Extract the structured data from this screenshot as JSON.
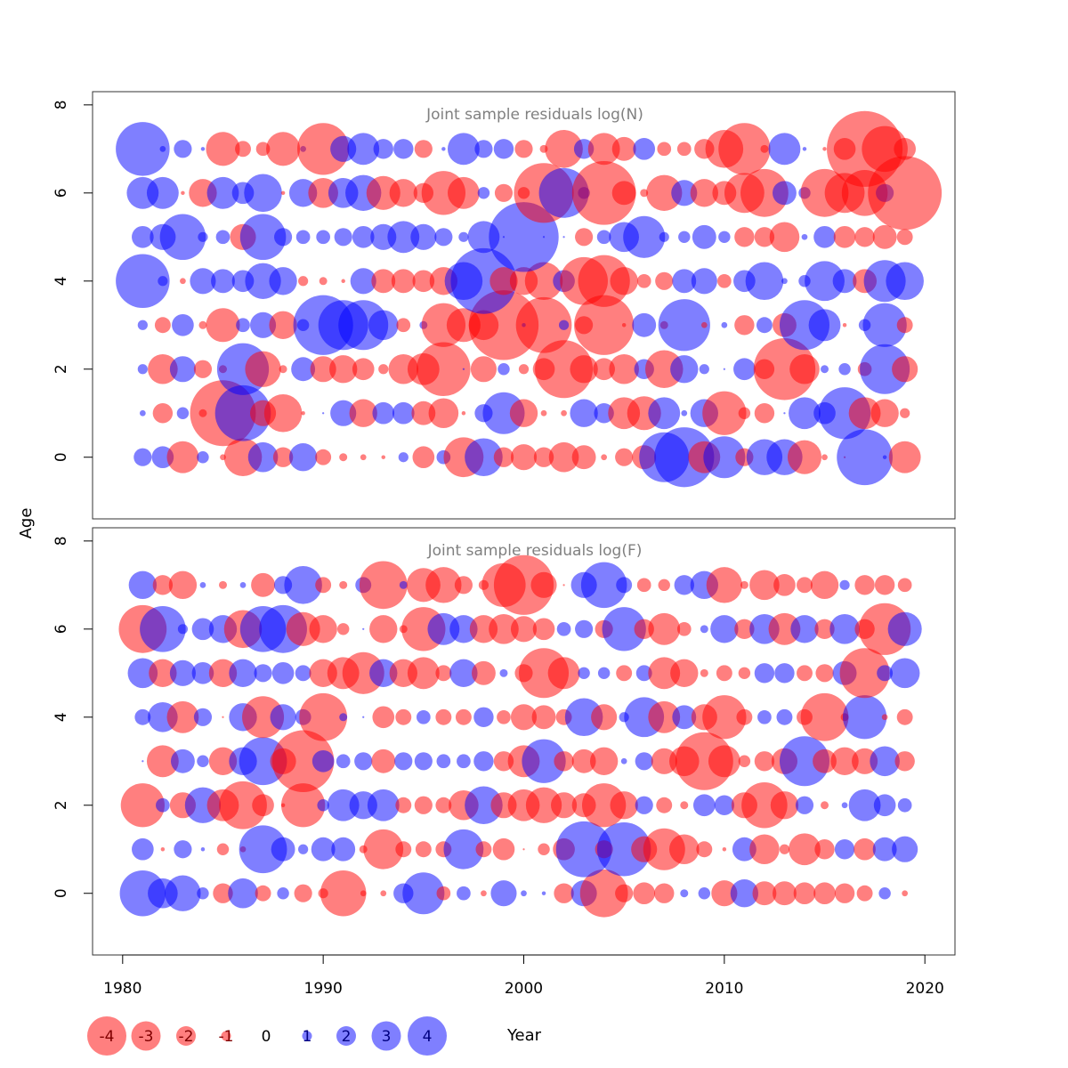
{
  "chart_data": {
    "type": "scatter",
    "subtype": "bubble-residuals",
    "xlabel": "Year",
    "ylabel": "Age",
    "xlim": [
      1978.5,
      2021.5
    ],
    "ylim": [
      -1.4,
      8.3
    ],
    "xticks": [
      1980,
      1990,
      2000,
      2010,
      2020
    ],
    "yticks": [
      0,
      2,
      4,
      6,
      8
    ],
    "colors": {
      "positive": "#0000ff",
      "negative": "#ff0000",
      "opacity": 0.5
    },
    "years": [
      1981,
      1982,
      1983,
      1984,
      1985,
      1986,
      1987,
      1988,
      1989,
      1990,
      1991,
      1992,
      1993,
      1994,
      1995,
      1996,
      1997,
      1998,
      1999,
      2000,
      2001,
      2002,
      2003,
      2004,
      2005,
      2006,
      2007,
      2008,
      2009,
      2010,
      2011,
      2012,
      2013,
      2014,
      2015,
      2016,
      2017,
      2018,
      2019
    ],
    "ages": [
      0,
      1,
      2,
      3,
      4,
      5,
      6,
      7
    ],
    "panels": [
      {
        "title": "Joint sample residuals log(N)",
        "residuals": [
          [
            0.9,
            1.1,
            -1.6,
            0.6,
            -0.3,
            -1.9,
            1.5,
            -1.0,
            1.4,
            -0.8,
            -0.4,
            -0.3,
            -0.2,
            0.5,
            -1.1,
            0.7,
            -2.0,
            1.9,
            -1.0,
            -1.3,
            -1.0,
            -1.5,
            -1.2,
            -0.3,
            -0.9,
            -1.2,
            2.5,
            3.0,
            -1.6,
            2.1,
            -0.9,
            1.8,
            1.8,
            -1.7,
            -0.3,
            -0.1,
            2.8,
            0.2,
            -1.6
          ],
          [
            0.3,
            -1.0,
            0.6,
            -0.4,
            -3.3,
            2.8,
            -1.3,
            -1.9,
            -0.2,
            0.1,
            1.3,
            -1.4,
            1.1,
            1.1,
            -1.2,
            -1.5,
            -0.2,
            0.9,
            2.1,
            -1.4,
            -0.3,
            -0.3,
            1.4,
            1.0,
            -1.6,
            -1.7,
            1.6,
            0.3,
            1.4,
            -2.2,
            -0.6,
            -1.0,
            0.1,
            1.6,
            1.1,
            2.6,
            -1.6,
            -1.4,
            -0.5
          ],
          [
            0.5,
            -1.5,
            1.3,
            -0.9,
            -0.4,
            2.6,
            -1.8,
            -0.4,
            1.2,
            -1.3,
            -1.4,
            -1.1,
            -0.5,
            -1.5,
            -1.6,
            -2.7,
            0.1,
            -1.3,
            0.6,
            -0.5,
            -1.1,
            -2.9,
            -1.4,
            -1.1,
            -1.5,
            1.0,
            -1.9,
            1.4,
            0.5,
            0.1,
            1.1,
            -1.0,
            -3.1,
            -1.5,
            0.4,
            0.6,
            -0.7,
            2.5,
            -1.3
          ],
          [
            0.5,
            -0.8,
            1.1,
            -0.4,
            -1.7,
            0.7,
            1.3,
            -1.4,
            0.6,
            3.0,
            2.5,
            2.5,
            1.5,
            -0.7,
            0.4,
            -2.2,
            -1.7,
            -1.5,
            -3.5,
            0.2,
            -2.8,
            0.5,
            -0.9,
            -3.0,
            -0.2,
            1.2,
            -0.4,
            2.6,
            -0.3,
            0.3,
            -1.0,
            0.8,
            -1.2,
            2.5,
            1.6,
            -0.2,
            0.6,
            2.2,
            -0.8
          ],
          [
            2.7,
            0.5,
            -0.3,
            1.3,
            1.2,
            1.1,
            1.8,
            1.4,
            -0.5,
            -0.4,
            -0.2,
            1.3,
            -1.2,
            -1.2,
            -1.1,
            -1.4,
            1.9,
            3.3,
            -1.4,
            -1.4,
            -1.9,
            1.1,
            -2.4,
            -2.6,
            -1.4,
            -0.7,
            -0.9,
            1.2,
            1.3,
            -0.7,
            1.1,
            1.9,
            0.3,
            0.6,
            2.0,
            1.2,
            -1.2,
            2.1,
            1.9
          ],
          [
            1.1,
            1.3,
            2.3,
            0.5,
            0.7,
            -1.3,
            2.3,
            0.9,
            0.7,
            0.7,
            0.9,
            1.1,
            1.3,
            1.6,
            1.3,
            0.9,
            0.5,
            1.6,
            0.1,
            3.5,
            0.1,
            0.1,
            -0.9,
            0.7,
            1.5,
            2.1,
            0.5,
            0.6,
            1.2,
            0.6,
            -1.0,
            -1.0,
            -1.5,
            0.3,
            1.1,
            -1.1,
            -1.0,
            -1.2,
            -0.8
          ],
          [
            1.6,
            1.6,
            -0.2,
            -1.4,
            1.6,
            1.1,
            1.9,
            -0.2,
            1.4,
            -1.5,
            1.5,
            1.8,
            -1.7,
            -1.4,
            -1.0,
            -2.2,
            -1.6,
            0.6,
            -0.9,
            -0.6,
            -3.0,
            2.5,
            0.6,
            -3.2,
            -1.2,
            -0.4,
            -1.8,
            1.3,
            -1.4,
            -1.2,
            -2.0,
            -2.4,
            1.2,
            0.6,
            -2.4,
            -2.0,
            -2.3,
            0.9,
            -3.7
          ],
          [
            2.7,
            0.3,
            0.9,
            0.2,
            -1.7,
            -0.8,
            -0.7,
            -1.7,
            0.3,
            -2.6,
            1.3,
            1.6,
            1.0,
            1.0,
            -0.9,
            0.2,
            1.6,
            0.9,
            1.0,
            -0.9,
            -0.4,
            -1.9,
            1.0,
            -1.6,
            -1.2,
            1.1,
            -0.7,
            -0.7,
            -1.0,
            -1.9,
            -2.6,
            -0.4,
            1.6,
            0.2,
            -0.2,
            -1.1,
            -3.8,
            -2.3,
            -1.1
          ]
        ]
      },
      {
        "title": "Joint sample residuals log(F)",
        "residuals": [
          [
            2.3,
            1.5,
            1.8,
            0.6,
            -1.0,
            1.5,
            -0.8,
            0.6,
            -0.9,
            -0.5,
            -2.3,
            -0.3,
            -0.3,
            1.0,
            2.1,
            -0.7,
            0.7,
            -0.3,
            1.3,
            0.3,
            0.2,
            -1.0,
            1.3,
            -2.4,
            -0.9,
            -1.1,
            -1.0,
            0.4,
            0.6,
            -1.3,
            1.4,
            -1.2,
            -1.2,
            -1.1,
            -1.1,
            -1.0,
            -0.8,
            0.6,
            -0.3
          ],
          [
            1.1,
            -0.2,
            0.9,
            0.2,
            -0.6,
            -0.3,
            2.4,
            1.2,
            0.5,
            1.2,
            1.2,
            -0.4,
            -2.0,
            -0.8,
            -0.8,
            -0.8,
            2.0,
            -0.8,
            -1.1,
            -0.1,
            -0.6,
            -1.1,
            2.8,
            -0.9,
            2.7,
            -1.3,
            -2.1,
            -1.5,
            -0.8,
            -0.2,
            1.2,
            -1.5,
            -0.5,
            -1.6,
            -1.0,
            1.0,
            -1.1,
            1.2,
            1.3
          ],
          [
            -2.2,
            0.7,
            -1.3,
            1.8,
            -1.6,
            -2.4,
            -1.1,
            -0.2,
            -2.2,
            0.6,
            1.6,
            1.4,
            1.6,
            -0.8,
            -0.9,
            -0.8,
            -1.5,
            1.9,
            -1.3,
            -1.6,
            -1.8,
            -1.3,
            -1.2,
            -2.2,
            -1.4,
            0.9,
            -0.8,
            -0.4,
            1.1,
            1.0,
            -1.3,
            -2.3,
            -1.4,
            0.9,
            -0.4,
            0.3,
            1.6,
            1.1,
            0.7
          ],
          [
            0.1,
            -1.6,
            1.2,
            0.6,
            -1.4,
            1.4,
            2.4,
            -1.3,
            -3.1,
            1.1,
            0.7,
            0.9,
            -1.2,
            0.9,
            0.9,
            0.7,
            0.7,
            1.0,
            -1.0,
            -1.6,
            2.2,
            -1.0,
            -1.2,
            -1.4,
            0.3,
            0.9,
            -1.3,
            -1.5,
            -2.9,
            -1.6,
            -0.6,
            -1.0,
            -1.3,
            2.5,
            -1.2,
            -1.4,
            -1.3,
            1.5,
            -1.0
          ],
          [
            0.8,
            1.5,
            -1.6,
            0.9,
            -0.1,
            1.4,
            -2.1,
            1.3,
            0.8,
            -2.4,
            0.4,
            0.1,
            -1.1,
            -0.8,
            0.7,
            -0.8,
            -0.8,
            1.0,
            -0.7,
            -1.3,
            -1.2,
            -0.8,
            1.9,
            -1.3,
            0.5,
            2.0,
            -1.6,
            1.2,
            -1.3,
            -2.2,
            -0.8,
            0.7,
            0.8,
            -0.8,
            -2.4,
            -0.4,
            2.2,
            -0.3,
            -0.8
          ],
          [
            1.5,
            -1.4,
            1.3,
            1.1,
            -1.4,
            1.4,
            0.9,
            1.1,
            0.8,
            -1.4,
            -1.6,
            -2.1,
            1.4,
            -1.4,
            -1.6,
            -0.8,
            1.4,
            -1.2,
            0.4,
            -0.9,
            -2.5,
            -1.6,
            0.6,
            0.6,
            -0.8,
            0.8,
            -1.6,
            -1.4,
            -0.4,
            -0.8,
            -0.6,
            1.0,
            1.0,
            -0.8,
            -0.9,
            1.2,
            -2.5,
            0.8,
            1.5
          ],
          [
            -2.4,
            2.3,
            0.5,
            1.1,
            1.4,
            -1.9,
            2.3,
            2.4,
            -1.7,
            -1.4,
            -0.6,
            0.1,
            -1.4,
            -0.4,
            -2.2,
            1.6,
            1.4,
            -1.4,
            -1.5,
            -1.3,
            -1.1,
            0.7,
            0.9,
            -0.9,
            2.2,
            -1.0,
            -1.6,
            -0.7,
            0.4,
            1.4,
            -1.0,
            1.5,
            -1.6,
            1.4,
            -1.0,
            1.5,
            -1.0,
            -2.6,
            1.7
          ],
          [
            1.4,
            -1.0,
            -1.4,
            0.3,
            -0.4,
            0.3,
            -1.2,
            0.9,
            1.9,
            -0.8,
            -0.4,
            0.8,
            -2.4,
            0.4,
            -1.7,
            -1.8,
            -0.9,
            -0.5,
            -2.2,
            -3.0,
            -1.3,
            -0.1,
            1.3,
            2.3,
            0.8,
            -0.7,
            -0.6,
            1.0,
            1.4,
            -1.8,
            -0.4,
            -1.5,
            -1.1,
            -0.8,
            -1.4,
            0.5,
            -1.0,
            -1.0,
            -0.7
          ]
        ]
      }
    ],
    "legend": {
      "entries": [
        "-4",
        "-3",
        "-2",
        "-1",
        "0",
        "1",
        "2",
        "3",
        "4"
      ],
      "values": [
        -4,
        -3,
        -2,
        -1,
        0,
        1,
        2,
        3,
        4
      ]
    }
  }
}
